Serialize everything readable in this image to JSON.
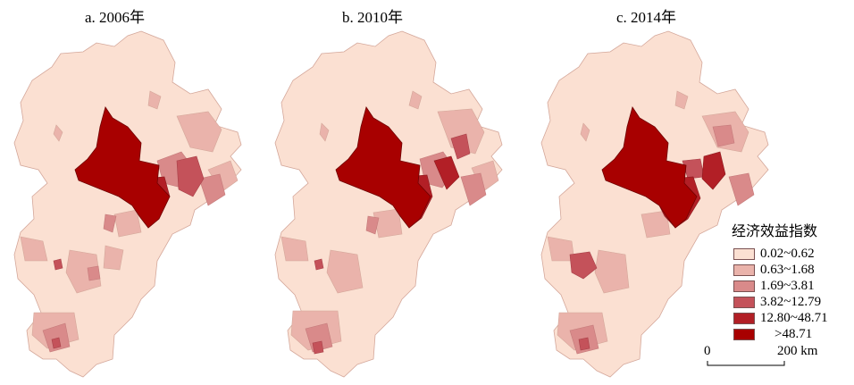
{
  "maps": [
    {
      "title": "a. 2006年"
    },
    {
      "title": "b. 2010年"
    },
    {
      "title": "c. 2014年"
    }
  ],
  "legend": {
    "title": "经济效益指数",
    "classes": [
      {
        "label": "0.02~0.62",
        "color": "#fbe0d2"
      },
      {
        "label": "0.63~1.68",
        "color": "#eab3ab"
      },
      {
        "label": "1.69~3.81",
        "color": "#d98a8a"
      },
      {
        "label": "3.82~12.79",
        "color": "#c4525a"
      },
      {
        "label": "12.80~48.71",
        "color": "#b21f26"
      },
      {
        "label": ">48.71",
        "color": "#a80000"
      }
    ]
  },
  "scale": {
    "start": "0",
    "end": "200 km"
  }
}
